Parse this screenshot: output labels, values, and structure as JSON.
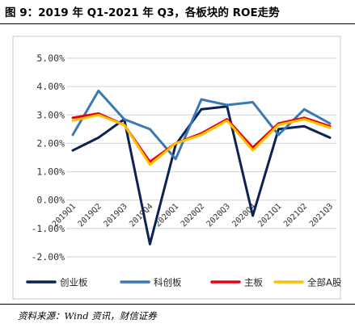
{
  "title": "图 9：2019 年 Q1-2021 年 Q3，各板块的 ROE走势",
  "source": "资料来源：Wind 资讯，财信证券",
  "colors": {
    "chinext": "#0b2354",
    "star": "#3a78b5",
    "main": "#e8000b",
    "all_a": "#ffc000",
    "grid": "#d0d0d0"
  },
  "chart_data": {
    "type": "line",
    "title": "",
    "xlabel": "",
    "ylabel": "",
    "ylim": [
      -2.0,
      5.0
    ],
    "yticks": [
      5.0,
      4.0,
      3.0,
      2.0,
      1.0,
      0.0,
      -1.0,
      -2.0
    ],
    "ytick_labels": [
      "5.00%",
      "4.00%",
      "3.00%",
      "2.00%",
      "1.00%",
      "0.00%",
      "-1.00%",
      "-2.00%"
    ],
    "grid": "horizontal",
    "legend": "bottom",
    "categories": [
      "2019Q1",
      "2019Q2",
      "2019Q3",
      "2019Q4",
      "2020Q1",
      "2020Q2",
      "2020Q3",
      "2020Q4",
      "2021Q1",
      "2021Q2",
      "2021Q3"
    ],
    "series": [
      {
        "name": "创业板",
        "color_key": "chinext",
        "values": [
          1.75,
          2.2,
          2.85,
          -1.55,
          1.95,
          3.2,
          3.3,
          -0.55,
          2.5,
          2.6,
          2.2
        ]
      },
      {
        "name": "科创板",
        "color_key": "star",
        "values": [
          2.3,
          3.85,
          2.85,
          2.5,
          1.45,
          3.55,
          3.35,
          3.45,
          2.3,
          3.2,
          2.7
        ]
      },
      {
        "name": "主板",
        "color_key": "main",
        "values": [
          2.9,
          3.05,
          2.65,
          1.35,
          2.0,
          2.35,
          2.85,
          1.85,
          2.7,
          2.9,
          2.6
        ]
      },
      {
        "name": "全部A股",
        "color_key": "all_a",
        "values": [
          2.8,
          3.0,
          2.65,
          1.25,
          2.0,
          2.3,
          2.8,
          1.75,
          2.65,
          2.85,
          2.55
        ]
      }
    ]
  }
}
